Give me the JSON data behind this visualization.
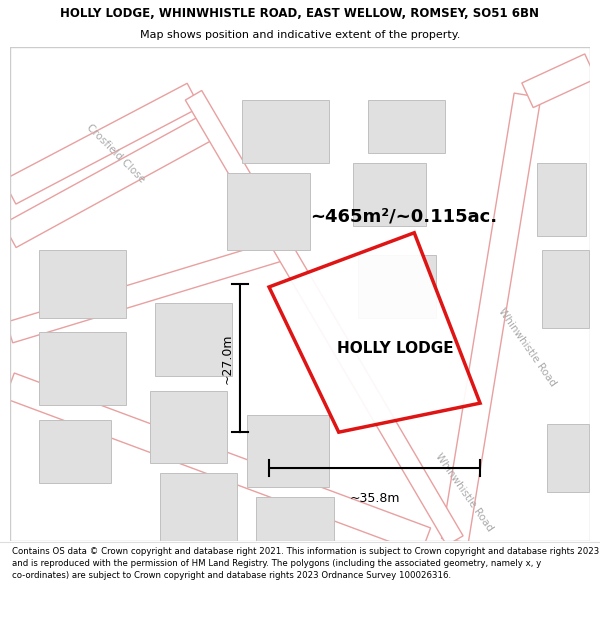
{
  "title": "HOLLY LODGE, WHINWHISTLE ROAD, EAST WELLOW, ROMSEY, SO51 6BN",
  "subtitle": "Map shows position and indicative extent of the property.",
  "map_bg": "#ffffff",
  "plot_color": "#dd0000",
  "road_outline_color": "#e8a0a0",
  "road_fill_color": "#ffffff",
  "building_fill": "#e0e0e0",
  "building_edge": "#c0c0c0",
  "property_name": "HOLLY LODGE",
  "area_text": "~465m²/~0.115ac.",
  "dim_width": "~35.8m",
  "dim_height": "~27.0m",
  "road_label_color": "#aaaaaa",
  "footer": "Contains OS data © Crown copyright and database right 2021. This information is subject to Crown copyright and database rights 2023 and is reproduced with the permission of HM Land Registry. The polygons (including the associated geometry, namely x, y co-ordinates) are subject to Crown copyright and database rights 2023 Ordnance Survey 100026316.",
  "title_fontsize": 8.5,
  "subtitle_fontsize": 8.0,
  "footer_fontsize": 6.2
}
